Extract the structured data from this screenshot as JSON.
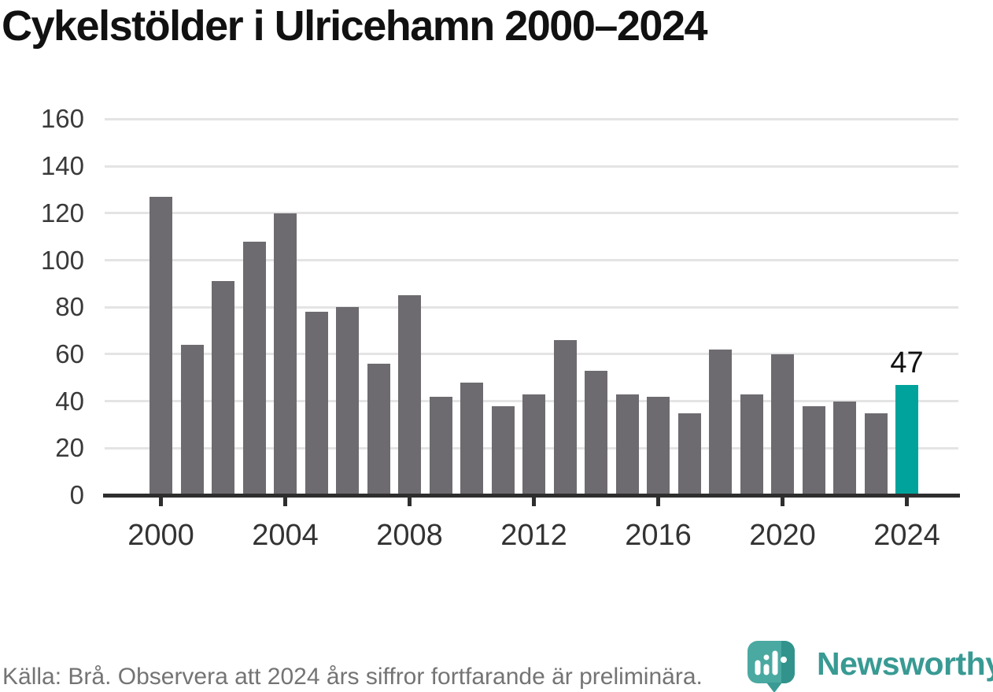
{
  "title": "Cykelstölder i Ulricehamn 2000–2024",
  "chart_data": {
    "type": "bar",
    "title": "Cykelstölder i Ulricehamn 2000–2024",
    "x": [
      2000,
      2001,
      2002,
      2003,
      2004,
      2005,
      2006,
      2007,
      2008,
      2009,
      2010,
      2011,
      2012,
      2013,
      2014,
      2015,
      2016,
      2017,
      2018,
      2019,
      2020,
      2021,
      2022,
      2023,
      2024
    ],
    "values": [
      127,
      64,
      91,
      108,
      120,
      78,
      80,
      56,
      85,
      42,
      48,
      38,
      43,
      66,
      53,
      43,
      42,
      35,
      62,
      43,
      60,
      38,
      40,
      35,
      47
    ],
    "xlabel": "",
    "ylabel": "",
    "ylim": [
      0,
      160
    ],
    "ytick_step": 20,
    "yticks": [
      0,
      20,
      40,
      60,
      80,
      100,
      120,
      140,
      160
    ],
    "xticks": [
      2000,
      2004,
      2008,
      2012,
      2016,
      2020,
      2024
    ],
    "grid": "horizontal",
    "legend": "none",
    "bar_color": "#6e6b70",
    "highlight": {
      "index": 24,
      "year": 2024,
      "value": 47,
      "label": "47",
      "color": "#00a39b"
    }
  },
  "footer": {
    "source_text": "Källa: Brå. Observera att 2024 års siffror fortfarande är preliminära."
  },
  "logo": {
    "text": "Newsworthy",
    "icon": "newsworthy-pin-barchart",
    "text_color": "#389a93",
    "mark_color": "#4aa9a1",
    "mark_dark_color": "#31938c"
  }
}
